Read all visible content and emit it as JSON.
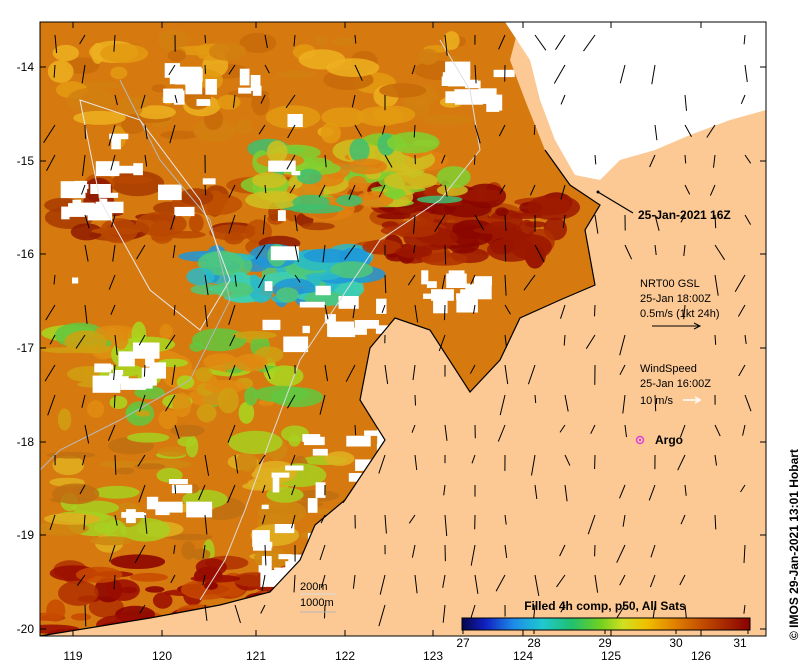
{
  "map": {
    "x_ticks": [
      "119",
      "120",
      "121",
      "122",
      "123",
      "124",
      "125",
      "126"
    ],
    "y_ticks": [
      "-14",
      "-15",
      "-16",
      "-17",
      "-18",
      "-19",
      "-20"
    ],
    "time_label": "25-Jan-2021 16Z",
    "current_label": "NRT00 GSL",
    "current_time": "25-Jan 18:00Z",
    "current_scale": "0.5m/s (1kt 24h)",
    "wind_label": "WindSpeed",
    "wind_time": "25-Jan 16:00Z",
    "wind_scale": "10 m/s",
    "argo_label": "Argo",
    "depth_200": "200m",
    "depth_1000": "1000m",
    "colorbar_title": "Filled 4h comp, p50, All Sats",
    "colorbar_ticks": [
      "27",
      "28",
      "29",
      "30",
      "31"
    ],
    "credit": "© IMOS 29-Jan-2021 13:01 Hobart"
  },
  "colors": {
    "land": "#fcc994",
    "cloud": "#ffffff",
    "argo": "#e040e0"
  }
}
